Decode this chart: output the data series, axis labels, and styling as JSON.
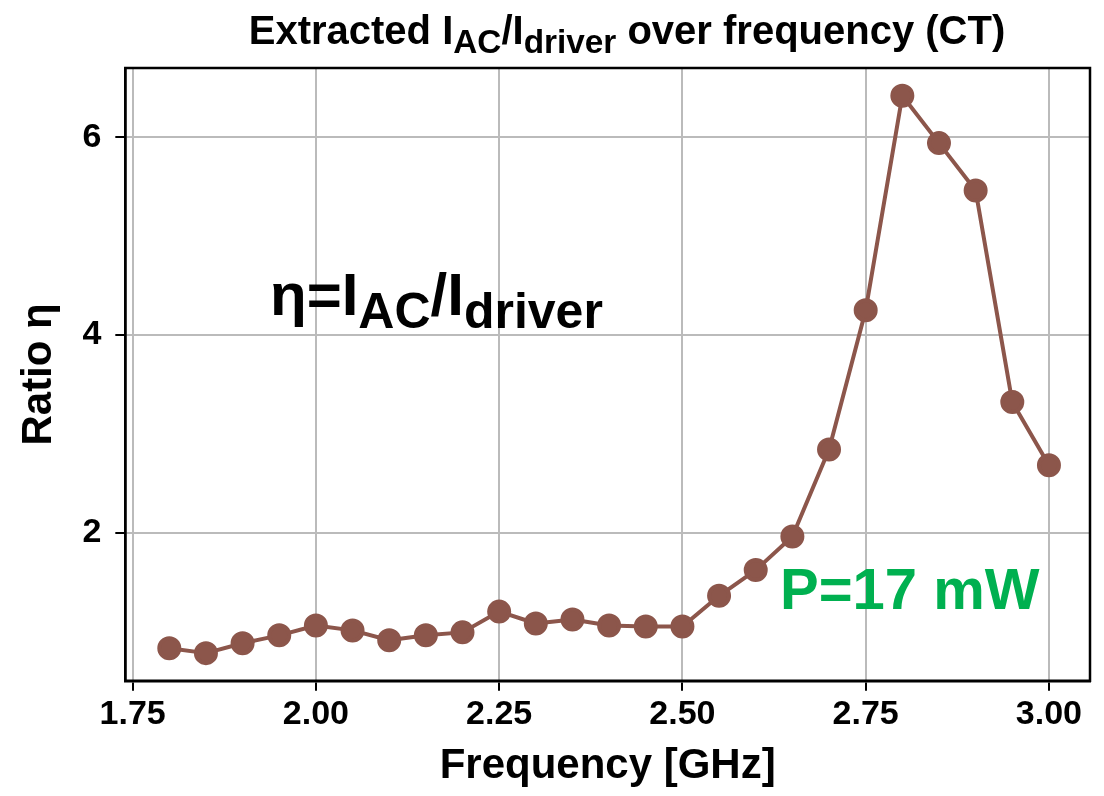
{
  "chart_data": {
    "type": "line",
    "title": "Extracted I$_{AC}$/I$_{driver}$ over frequency (CT)",
    "xlabel": "Frequency [GHz]",
    "ylabel": "Ratio η",
    "x": [
      1.8,
      1.85,
      1.9,
      1.95,
      2.0,
      2.05,
      2.1,
      2.15,
      2.2,
      2.25,
      2.3,
      2.35,
      2.4,
      2.45,
      2.5,
      2.55,
      2.6,
      2.65,
      2.7,
      2.75,
      2.8,
      2.85,
      2.9,
      2.95,
      3.0
    ],
    "series": [
      {
        "color": "#8c564b",
        "values": [
          0.83,
          0.78,
          0.88,
          0.96,
          1.06,
          1.01,
          0.91,
          0.96,
          0.99,
          1.2,
          1.08,
          1.12,
          1.06,
          1.05,
          1.05,
          1.36,
          1.62,
          1.96,
          2.84,
          4.25,
          6.42,
          5.94,
          5.46,
          3.32,
          2.68
        ]
      }
    ],
    "xlim": [
      1.74,
      3.056
    ],
    "ylim": [
      0.5,
      6.7
    ],
    "xticks": [
      1.75,
      {
        "value": 2.0,
        "label": "2.00"
      },
      2.25,
      {
        "value": 2.5,
        "label": "2.50"
      },
      2.75,
      {
        "value": 3.0,
        "label": "3.00"
      }
    ],
    "yticks": [
      2,
      4,
      6
    ],
    "grid": true,
    "legend": false,
    "marker": "circle",
    "line_style": "solid",
    "annotations": [
      "η=I$_{AC}$/I$_{driver}$",
      "P=17 mW"
    ]
  }
}
